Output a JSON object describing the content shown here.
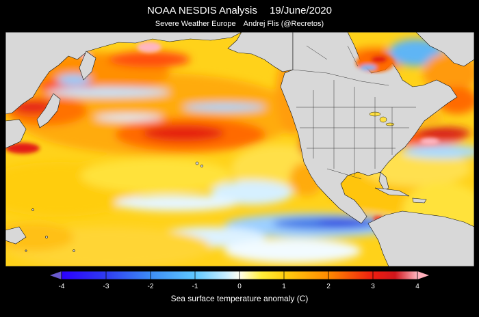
{
  "header": {
    "title": "NOAA NESDIS Analysis",
    "date": "19/June/2020",
    "source": "Severe Weather Europe",
    "author": "Andrej Flis (@Recretos)"
  },
  "colorbar": {
    "label": "Sea surface temperature anomaly (C)",
    "ticks": [
      "-4",
      "-3",
      "-2",
      "-1",
      "0",
      "1",
      "2",
      "3",
      "4"
    ],
    "range": [
      -4,
      4
    ],
    "stops": [
      {
        "value": -4,
        "color": "#2b00ff"
      },
      {
        "value": -3,
        "color": "#2f3cf0"
      },
      {
        "value": -2,
        "color": "#3d8cf5"
      },
      {
        "value": -1,
        "color": "#5fc8ff"
      },
      {
        "value": -0.3,
        "color": "#c8eeff"
      },
      {
        "value": 0,
        "color": "#fffff0"
      },
      {
        "value": 0.5,
        "color": "#ffef3a"
      },
      {
        "value": 1,
        "color": "#ffcf10"
      },
      {
        "value": 2,
        "color": "#ff8a00"
      },
      {
        "value": 3,
        "color": "#ee1d10"
      },
      {
        "value": 3.5,
        "color": "#d0161c"
      },
      {
        "value": 4,
        "color": "#ffb6c1"
      }
    ],
    "under_color": "#6a5acd",
    "over_color": "#ffb0bc"
  },
  "colors": {
    "land": "#d8d8d8",
    "land_border": "#111111"
  }
}
